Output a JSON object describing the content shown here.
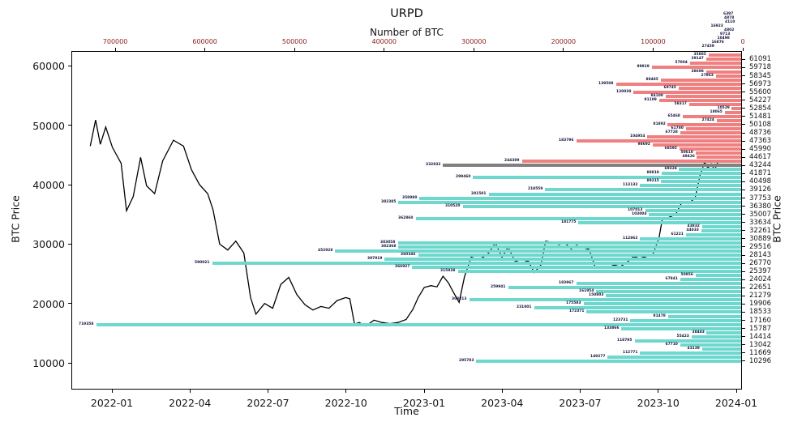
{
  "title": "URPD",
  "axes": {
    "top_label": "Number of BTC",
    "bottom_label": "Time",
    "left_label": "BTC Price",
    "right_label": "BTC Price"
  },
  "colors": {
    "below_price": "#6fd8ce",
    "above_price": "#f08080",
    "current_band": "#808080",
    "price_line": "#000000",
    "bar_label_text": "#10103a",
    "top_tick_text": "#8b2020"
  },
  "chart_data": {
    "type": "bar",
    "orientation": "horizontal",
    "title": "URPD",
    "xlabel_top": "Number of BTC",
    "xlabel_bottom": "Time",
    "ylabel": "BTC Price",
    "btc_axis_max": 748000,
    "btc_axis_ticks": [
      700000,
      600000,
      500000,
      400000,
      300000,
      200000,
      100000,
      0
    ],
    "price_axis_left_ticks": [
      60000,
      50000,
      40000,
      30000,
      20000,
      10000
    ],
    "price_ylim": [
      5373,
      62373
    ],
    "time_ticks": [
      "2022-01",
      "2022-04",
      "2022-07",
      "2022-10",
      "2023-01",
      "2023-04",
      "2023-07",
      "2023-10",
      "2024-01"
    ],
    "legend": "none",
    "grid": false,
    "bars_note": "zone: o=label overflow above axis (bar clipped), a=above current price (red), c=current price band (gray), b=below current price (teal)",
    "bars": [
      {
        "price": 68642,
        "btc": 6397,
        "zone": "o"
      },
      {
        "price": 67956,
        "btc": 4878,
        "zone": "o"
      },
      {
        "price": 67269,
        "btc": 4110,
        "zone": "o"
      },
      {
        "price": 66583,
        "btc": 16923,
        "zone": "o"
      },
      {
        "price": 65896,
        "btc": 4802,
        "zone": "o"
      },
      {
        "price": 65210,
        "btc": 9713,
        "zone": "o"
      },
      {
        "price": 64523,
        "btc": 10498,
        "zone": "o"
      },
      {
        "price": 63837,
        "btc": 16876,
        "zone": "o"
      },
      {
        "price": 63150,
        "btc": 27459,
        "zone": "o"
      },
      {
        "price": 61777,
        "btc": 35885,
        "zone": "a"
      },
      {
        "price": 61091,
        "btc": 39147,
        "zone": "a"
      },
      {
        "price": 60405,
        "btc": 57004,
        "zone": "a"
      },
      {
        "price": 59718,
        "btc": 99919,
        "zone": "a"
      },
      {
        "price": 59032,
        "btc": 38698,
        "zone": "a"
      },
      {
        "price": 58345,
        "btc": 27963,
        "zone": "a"
      },
      {
        "price": 57659,
        "btc": 89485,
        "zone": "a"
      },
      {
        "price": 56973,
        "btc": 139508,
        "zone": "a"
      },
      {
        "price": 56286,
        "btc": 69745,
        "zone": "a"
      },
      {
        "price": 55600,
        "btc": 120030,
        "zone": "a"
      },
      {
        "price": 54913,
        "btc": 84100,
        "zone": "a"
      },
      {
        "price": 54227,
        "btc": 91109,
        "zone": "a"
      },
      {
        "price": 53541,
        "btc": 58317,
        "zone": "a"
      },
      {
        "price": 52854,
        "btc": 10529,
        "zone": "a"
      },
      {
        "price": 52168,
        "btc": 18065,
        "zone": "a"
      },
      {
        "price": 51481,
        "btc": 65468,
        "zone": "a"
      },
      {
        "price": 50795,
        "btc": 27424,
        "zone": "a"
      },
      {
        "price": 50108,
        "btc": 81892,
        "zone": "a"
      },
      {
        "price": 49422,
        "btc": 61780,
        "zone": "a"
      },
      {
        "price": 48736,
        "btc": 67728,
        "zone": "a"
      },
      {
        "price": 48049,
        "btc": 104954,
        "zone": "a"
      },
      {
        "price": 47363,
        "btc": 183796,
        "zone": "a"
      },
      {
        "price": 46676,
        "btc": 98692,
        "zone": "a"
      },
      {
        "price": 45990,
        "btc": 68595,
        "zone": "a"
      },
      {
        "price": 45304,
        "btc": 50610,
        "zone": "a"
      },
      {
        "price": 44617,
        "btc": 49426,
        "zone": "a"
      },
      {
        "price": 43931,
        "btc": 244389,
        "zone": "a"
      },
      {
        "price": 43244,
        "btc": 332832,
        "zone": "c"
      },
      {
        "price": 42558,
        "btc": 69324,
        "zone": "b"
      },
      {
        "price": 41871,
        "btc": 88810,
        "zone": "b"
      },
      {
        "price": 41185,
        "btc": 299460,
        "zone": "b"
      },
      {
        "price": 40498,
        "btc": 89215,
        "zone": "b"
      },
      {
        "price": 39812,
        "btc": 113132,
        "zone": "b"
      },
      {
        "price": 39126,
        "btc": 218559,
        "zone": "b"
      },
      {
        "price": 38439,
        "btc": 281501,
        "zone": "b"
      },
      {
        "price": 37753,
        "btc": 358980,
        "zone": "b"
      },
      {
        "price": 37066,
        "btc": 382385,
        "zone": "b"
      },
      {
        "price": 36380,
        "btc": 310520,
        "zone": "b"
      },
      {
        "price": 35694,
        "btc": 107013,
        "zone": "b"
      },
      {
        "price": 35007,
        "btc": 103004,
        "zone": "b"
      },
      {
        "price": 34321,
        "btc": 362860,
        "zone": "b"
      },
      {
        "price": 33634,
        "btc": 181775,
        "zone": "b"
      },
      {
        "price": 32948,
        "btc": 43832,
        "zone": "b"
      },
      {
        "price": 32261,
        "btc": 44033,
        "zone": "b"
      },
      {
        "price": 31575,
        "btc": 61221,
        "zone": "b"
      },
      {
        "price": 30889,
        "btc": 112862,
        "zone": "b"
      },
      {
        "price": 30202,
        "btc": 383058,
        "zone": "b"
      },
      {
        "price": 29516,
        "btc": 382368,
        "zone": "b"
      },
      {
        "price": 28829,
        "btc": 452928,
        "zone": "b"
      },
      {
        "price": 28143,
        "btc": 360346,
        "zone": "b"
      },
      {
        "price": 27457,
        "btc": 397919,
        "zone": "b"
      },
      {
        "price": 26770,
        "btc": 590021,
        "zone": "b"
      },
      {
        "price": 26084,
        "btc": 366927,
        "zone": "b"
      },
      {
        "price": 25397,
        "btc": 315938,
        "zone": "b"
      },
      {
        "price": 24711,
        "btc": 50956,
        "zone": "b"
      },
      {
        "price": 24024,
        "btc": 67841,
        "zone": "b"
      },
      {
        "price": 23338,
        "btc": 183967,
        "zone": "b"
      },
      {
        "price": 22651,
        "btc": 259941,
        "zone": "b"
      },
      {
        "price": 21965,
        "btc": 161954,
        "zone": "b"
      },
      {
        "price": 21279,
        "btc": 150803,
        "zone": "b"
      },
      {
        "price": 20592,
        "btc": 303213,
        "zone": "b"
      },
      {
        "price": 19906,
        "btc": 175583,
        "zone": "b"
      },
      {
        "price": 19219,
        "btc": 231001,
        "zone": "b"
      },
      {
        "price": 18533,
        "btc": 172371,
        "zone": "b"
      },
      {
        "price": 17847,
        "btc": 81478,
        "zone": "b"
      },
      {
        "price": 17160,
        "btc": 123731,
        "zone": "b"
      },
      {
        "price": 16474,
        "btc": 719358,
        "zone": "b"
      },
      {
        "price": 15787,
        "btc": 133866,
        "zone": "b"
      },
      {
        "price": 15101,
        "btc": 38483,
        "zone": "b"
      },
      {
        "price": 14414,
        "btc": 55423,
        "zone": "b"
      },
      {
        "price": 13728,
        "btc": 118795,
        "zone": "b"
      },
      {
        "price": 13042,
        "btc": 67710,
        "zone": "b"
      },
      {
        "price": 12355,
        "btc": 43139,
        "zone": "b"
      },
      {
        "price": 11669,
        "btc": 112771,
        "zone": "b"
      },
      {
        "price": 10983,
        "btc": 149277,
        "zone": "b"
      },
      {
        "price": 10296,
        "btc": 295783,
        "zone": "b"
      }
    ],
    "price_line": [
      [
        0.027,
        46500
      ],
      [
        0.035,
        50900
      ],
      [
        0.042,
        46800
      ],
      [
        0.05,
        49700
      ],
      [
        0.06,
        46300
      ],
      [
        0.073,
        43600
      ],
      [
        0.081,
        35600
      ],
      [
        0.091,
        38000
      ],
      [
        0.102,
        44600
      ],
      [
        0.111,
        39800
      ],
      [
        0.123,
        38500
      ],
      [
        0.135,
        44000
      ],
      [
        0.151,
        47500
      ],
      [
        0.166,
        46500
      ],
      [
        0.178,
        42500
      ],
      [
        0.19,
        40000
      ],
      [
        0.202,
        38500
      ],
      [
        0.21,
        35800
      ],
      [
        0.22,
        30000
      ],
      [
        0.232,
        29000
      ],
      [
        0.244,
        30500
      ],
      [
        0.256,
        28500
      ],
      [
        0.266,
        21000
      ],
      [
        0.274,
        18200
      ],
      [
        0.287,
        20000
      ],
      [
        0.299,
        19200
      ],
      [
        0.311,
        23200
      ],
      [
        0.323,
        24400
      ],
      [
        0.335,
        21500
      ],
      [
        0.347,
        19800
      ],
      [
        0.359,
        18900
      ],
      [
        0.371,
        19500
      ],
      [
        0.383,
        19200
      ],
      [
        0.395,
        20500
      ],
      [
        0.408,
        21000
      ],
      [
        0.414,
        20800
      ],
      [
        0.421,
        16500
      ],
      [
        0.428,
        16800
      ],
      [
        0.438,
        16200
      ],
      [
        0.45,
        17200
      ],
      [
        0.462,
        16800
      ],
      [
        0.474,
        16600
      ],
      [
        0.486,
        16800
      ],
      [
        0.498,
        17300
      ],
      [
        0.508,
        19000
      ],
      [
        0.516,
        21000
      ],
      [
        0.525,
        22700
      ],
      [
        0.535,
        23000
      ],
      [
        0.544,
        22800
      ],
      [
        0.553,
        24600
      ],
      [
        0.561,
        23500
      ],
      [
        0.568,
        22000
      ],
      [
        0.577,
        20200
      ],
      [
        0.585,
        24500
      ],
      [
        0.595,
        27800
      ],
      [
        0.605,
        28200
      ],
      [
        0.613,
        27800
      ],
      [
        0.621,
        28500
      ],
      [
        0.631,
        30200
      ],
      [
        0.641,
        27800
      ],
      [
        0.65,
        29500
      ],
      [
        0.66,
        27200
      ],
      [
        0.67,
        26800
      ],
      [
        0.68,
        27200
      ],
      [
        0.689,
        25200
      ],
      [
        0.699,
        26500
      ],
      [
        0.706,
        30500
      ],
      [
        0.716,
        30300
      ],
      [
        0.726,
        29900
      ],
      [
        0.734,
        30300
      ],
      [
        0.744,
        29200
      ],
      [
        0.752,
        29800
      ],
      [
        0.762,
        29400
      ],
      [
        0.771,
        29100
      ],
      [
        0.78,
        26100
      ],
      [
        0.788,
        26000
      ],
      [
        0.798,
        25900
      ],
      [
        0.808,
        26500
      ],
      [
        0.817,
        26200
      ],
      [
        0.827,
        26900
      ],
      [
        0.837,
        27900
      ],
      [
        0.846,
        27600
      ],
      [
        0.856,
        27900
      ],
      [
        0.866,
        28300
      ],
      [
        0.875,
        31000
      ],
      [
        0.88,
        34200
      ],
      [
        0.89,
        34500
      ],
      [
        0.9,
        35000
      ],
      [
        0.909,
        37000
      ],
      [
        0.919,
        36800
      ],
      [
        0.929,
        37800
      ],
      [
        0.936,
        41500
      ],
      [
        0.943,
        43800
      ],
      [
        0.948,
        42800
      ],
      [
        0.953,
        43500
      ],
      [
        0.958,
        42500
      ],
      [
        0.963,
        43900
      ]
    ]
  }
}
